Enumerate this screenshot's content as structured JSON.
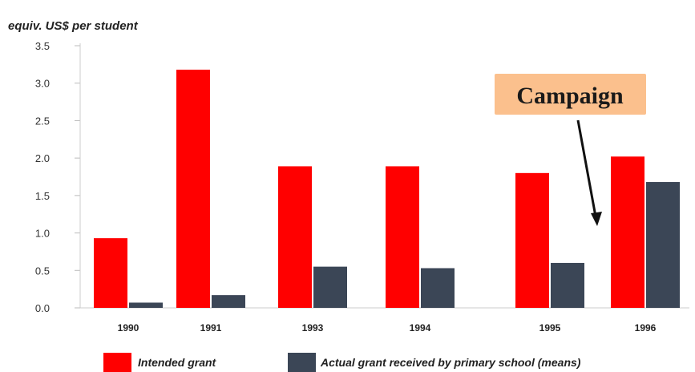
{
  "chart_data": {
    "type": "bar",
    "categories": [
      "1990",
      "1991",
      "1993",
      "1994",
      "1995",
      "1996"
    ],
    "series": [
      {
        "name": "Intended grant",
        "values": [
          0.93,
          3.18,
          1.89,
          1.89,
          1.8,
          2.02
        ],
        "color": "#ff0000"
      },
      {
        "name": "Actual grant received by primary school (means)",
        "values": [
          0.07,
          0.17,
          0.55,
          0.53,
          0.6,
          1.68
        ],
        "color": "#3b4656"
      }
    ],
    "title": "",
    "xlabel": "",
    "ylabel": "equiv. US$ per student",
    "ylim": [
      0,
      3.5
    ],
    "yticks": [
      "0.0",
      "0.5",
      "1.0",
      "1.5",
      "2.0",
      "2.5",
      "3.0",
      "3.5"
    ],
    "grid": false,
    "legend_position": "bottom",
    "annotation": {
      "text": "Campaign",
      "background": "#fbc08d",
      "arrow_color": "#111111"
    }
  }
}
